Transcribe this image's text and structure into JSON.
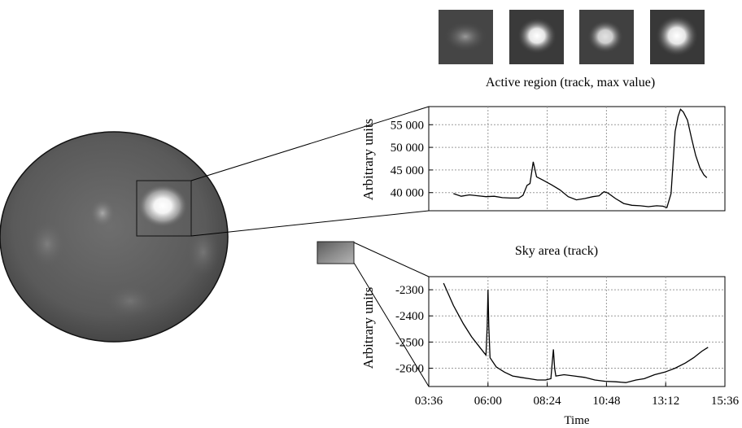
{
  "captions": {
    "active_region": "Active region (track, max value)",
    "sky_area": "Sky area (track)"
  },
  "chart_data": [
    {
      "type": "line",
      "name": "active-region-chart",
      "title": "Active region (track, max value)",
      "xlabel": "",
      "ylabel": "Arbitrary units",
      "xlim": [
        "03:36",
        "15:36"
      ],
      "ylim": [
        36000,
        59000
      ],
      "yticks": [
        40000,
        45000,
        50000,
        55000
      ],
      "yticklabels": [
        "40 000",
        "45 000",
        "50 000",
        "55 000"
      ],
      "grid": true,
      "series": [
        {
          "color": "#000000",
          "points": [
            [
              "04:36",
              39800
            ],
            [
              "04:55",
              39200
            ],
            [
              "05:15",
              39500
            ],
            [
              "05:35",
              39300
            ],
            [
              "05:55",
              39100
            ],
            [
              "06:15",
              39200
            ],
            [
              "06:35",
              38900
            ],
            [
              "06:55",
              38800
            ],
            [
              "07:15",
              38800
            ],
            [
              "07:25",
              39400
            ],
            [
              "07:35",
              41600
            ],
            [
              "07:42",
              42000
            ],
            [
              "07:50",
              46800
            ],
            [
              "07:58",
              43500
            ],
            [
              "08:15",
              42700
            ],
            [
              "08:35",
              41700
            ],
            [
              "08:55",
              40600
            ],
            [
              "09:15",
              39100
            ],
            [
              "09:35",
              38400
            ],
            [
              "09:55",
              38700
            ],
            [
              "10:15",
              39100
            ],
            [
              "10:30",
              39300
            ],
            [
              "10:42",
              40200
            ],
            [
              "10:52",
              39900
            ],
            [
              "11:10",
              38700
            ],
            [
              "11:30",
              37600
            ],
            [
              "11:50",
              37200
            ],
            [
              "12:10",
              37100
            ],
            [
              "12:30",
              36900
            ],
            [
              "12:50",
              37100
            ],
            [
              "13:05",
              37000
            ],
            [
              "13:15",
              36700
            ],
            [
              "13:25",
              39800
            ],
            [
              "13:35",
              53500
            ],
            [
              "13:42",
              56800
            ],
            [
              "13:48",
              58400
            ],
            [
              "13:55",
              57800
            ],
            [
              "14:05",
              56000
            ],
            [
              "14:15",
              52000
            ],
            [
              "14:25",
              48200
            ],
            [
              "14:35",
              45500
            ],
            [
              "14:45",
              43900
            ],
            [
              "14:52",
              43300
            ]
          ]
        }
      ]
    },
    {
      "type": "line",
      "name": "sky-area-chart",
      "title": "Sky area (track)",
      "xlabel": "Time",
      "ylabel": "Arbitrary units",
      "xlim": [
        "03:36",
        "15:36"
      ],
      "ylim": [
        -2670,
        -2250
      ],
      "xticks": [
        "03:36",
        "06:00",
        "08:24",
        "10:48",
        "13:12",
        "15:36"
      ],
      "yticks": [
        -2600,
        -2500,
        -2400,
        -2300
      ],
      "yticklabels": [
        "-2600",
        "-2500",
        "-2400",
        "-2300"
      ],
      "grid": true,
      "series": [
        {
          "color": "#000000",
          "points": [
            [
              "04:12",
              -2275
            ],
            [
              "04:36",
              -2360
            ],
            [
              "05:00",
              -2430
            ],
            [
              "05:20",
              -2480
            ],
            [
              "05:40",
              -2520
            ],
            [
              "05:50",
              -2540
            ],
            [
              "05:55",
              -2550
            ],
            [
              "05:58",
              -2440
            ],
            [
              "06:00",
              -2300
            ],
            [
              "06:02",
              -2440
            ],
            [
              "06:05",
              -2560
            ],
            [
              "06:20",
              -2595
            ],
            [
              "06:40",
              -2615
            ],
            [
              "07:00",
              -2630
            ],
            [
              "07:20",
              -2635
            ],
            [
              "07:40",
              -2640
            ],
            [
              "08:00",
              -2645
            ],
            [
              "08:20",
              -2645
            ],
            [
              "08:33",
              -2640
            ],
            [
              "08:36",
              -2580
            ],
            [
              "08:39",
              -2528
            ],
            [
              "08:42",
              -2600
            ],
            [
              "08:45",
              -2630
            ],
            [
              "09:05",
              -2625
            ],
            [
              "09:30",
              -2630
            ],
            [
              "09:55",
              -2635
            ],
            [
              "10:20",
              -2645
            ],
            [
              "10:45",
              -2650
            ],
            [
              "11:10",
              -2652
            ],
            [
              "11:35",
              -2655
            ],
            [
              "12:00",
              -2645
            ],
            [
              "12:20",
              -2640
            ],
            [
              "12:45",
              -2625
            ],
            [
              "13:10",
              -2615
            ],
            [
              "13:35",
              -2600
            ],
            [
              "14:00",
              -2580
            ],
            [
              "14:20",
              -2560
            ],
            [
              "14:40",
              -2535
            ],
            [
              "14:55",
              -2520
            ]
          ]
        }
      ]
    }
  ]
}
